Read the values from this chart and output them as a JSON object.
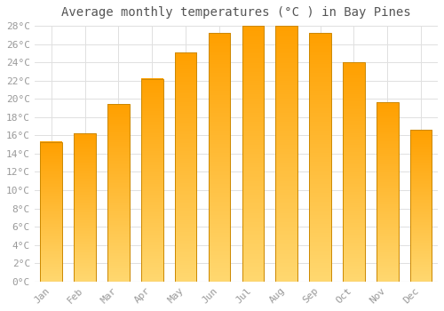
{
  "title": "Average monthly temperatures (°C ) in Bay Pines",
  "months": [
    "Jan",
    "Feb",
    "Mar",
    "Apr",
    "May",
    "Jun",
    "Jul",
    "Aug",
    "Sep",
    "Oct",
    "Nov",
    "Dec"
  ],
  "values": [
    15.3,
    16.2,
    19.4,
    22.2,
    25.1,
    27.2,
    28.0,
    28.0,
    27.2,
    24.0,
    19.6,
    16.6
  ],
  "bar_color_top": "#FFA500",
  "bar_color_bottom": "#FFD870",
  "bar_edge_color": "#CC8800",
  "background_color": "#ffffff",
  "grid_color": "#e0e0e0",
  "ylim": [
    0,
    28
  ],
  "ytick_step": 2,
  "title_fontsize": 10,
  "tick_fontsize": 8,
  "tick_font_color": "#999999",
  "title_color": "#555555",
  "font_family": "monospace"
}
